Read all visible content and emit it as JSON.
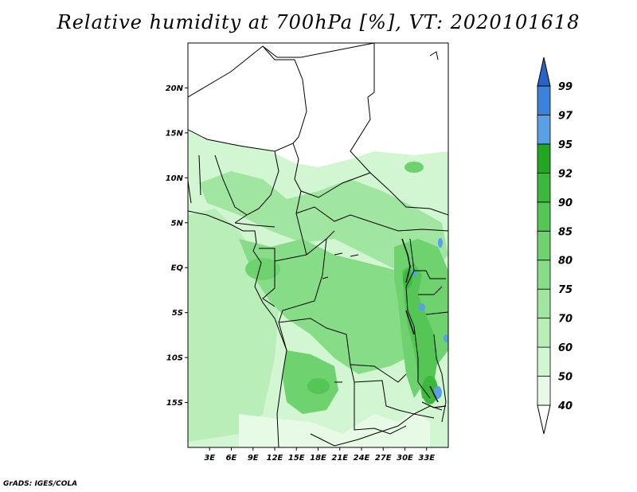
{
  "title": "Relative humidity at 700hPa [%], VT: 2020101618",
  "credit": "GrADS: IGES/COLA",
  "map": {
    "lon_range": [
      0,
      36
    ],
    "lat_range": [
      -20,
      25
    ],
    "lon_ticks": [
      "3E",
      "6E",
      "9E",
      "12E",
      "15E",
      "18E",
      "21E",
      "24E",
      "27E",
      "30E",
      "33E"
    ],
    "lat_ticks": [
      "20N",
      "15N",
      "10N",
      "5N",
      "EQ",
      "5S",
      "10S",
      "15S"
    ]
  },
  "colorbar": {
    "levels": [
      "40",
      "50",
      "60",
      "70",
      "75",
      "80",
      "85",
      "90",
      "92",
      "95",
      "97",
      "99"
    ],
    "colors": [
      "#e6fae6",
      "#d2f5d2",
      "#b9eeb9",
      "#a0e6a0",
      "#87dd87",
      "#6ed26e",
      "#55c655",
      "#3cb83c",
      "#22a622",
      "#5aa0e6",
      "#3c82dc",
      "#2864c8"
    ]
  },
  "fields": [
    {
      "name": "background-humidity",
      "color_index": 1
    },
    {
      "name": "south-atlantic",
      "color_index": 2
    },
    {
      "name": "central-belt",
      "color_index": 3
    },
    {
      "name": "congo-basin",
      "color_index": 4
    },
    {
      "name": "great-lakes",
      "color_index": 5
    },
    {
      "name": "angola-high",
      "color_index": 6
    },
    {
      "name": "rift-core",
      "color_index": 7
    },
    {
      "name": "rift-peaks",
      "color_index": 10
    }
  ]
}
